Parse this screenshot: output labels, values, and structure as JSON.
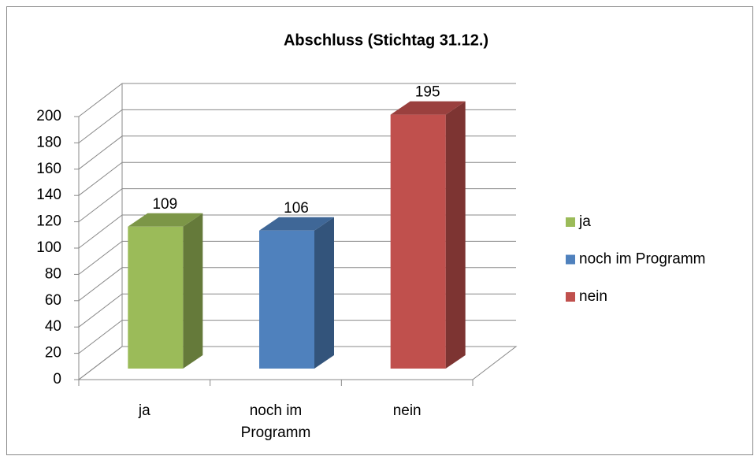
{
  "chart_data": {
    "type": "bar3d",
    "title": "Abschluss (Stichtag 31.12.)",
    "categories": [
      "ja",
      "noch im Programm",
      "nein"
    ],
    "values": [
      109,
      106,
      195
    ],
    "colors": [
      "#9bbb59",
      "#4f81bd",
      "#c0504d"
    ],
    "ylim": [
      0,
      200
    ],
    "yticks": [
      0,
      20,
      40,
      60,
      80,
      100,
      120,
      140,
      160,
      180,
      200
    ],
    "grid": true,
    "legend": "right"
  }
}
